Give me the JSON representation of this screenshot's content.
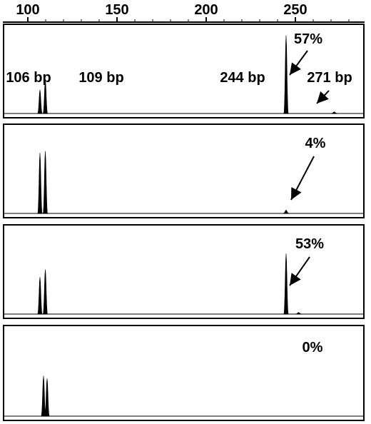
{
  "chart_data": {
    "type": "line",
    "title": "",
    "xlabel": "",
    "ylabel": "",
    "xlim": [
      88,
      292
    ],
    "x_ticks": [
      "100",
      "150",
      "200",
      "250"
    ],
    "x_tick_values": [
      100,
      150,
      200,
      250
    ],
    "panels": [
      {
        "percent_label": "57%",
        "peaks": [
          {
            "x": 106,
            "height": 0.28,
            "label": "106 bp"
          },
          {
            "x": 109,
            "height": 0.4,
            "label": "109 bp"
          },
          {
            "x": 244,
            "height": 0.93,
            "label": "244 bp"
          },
          {
            "x": 271,
            "height": 0.02,
            "label": "271 bp"
          }
        ]
      },
      {
        "percent_label": "4%",
        "peaks": [
          {
            "x": 106,
            "height": 0.72
          },
          {
            "x": 109,
            "height": 0.74
          },
          {
            "x": 244,
            "height": 0.04
          }
        ]
      },
      {
        "percent_label": "53%",
        "peaks": [
          {
            "x": 106,
            "height": 0.44
          },
          {
            "x": 109,
            "height": 0.53
          },
          {
            "x": 244,
            "height": 0.72
          },
          {
            "x": 251,
            "height": 0.02
          }
        ]
      },
      {
        "percent_label": "0%",
        "peaks": [
          {
            "x": 108,
            "height": 0.47
          },
          {
            "x": 110,
            "height": 0.44
          }
        ]
      }
    ]
  }
}
